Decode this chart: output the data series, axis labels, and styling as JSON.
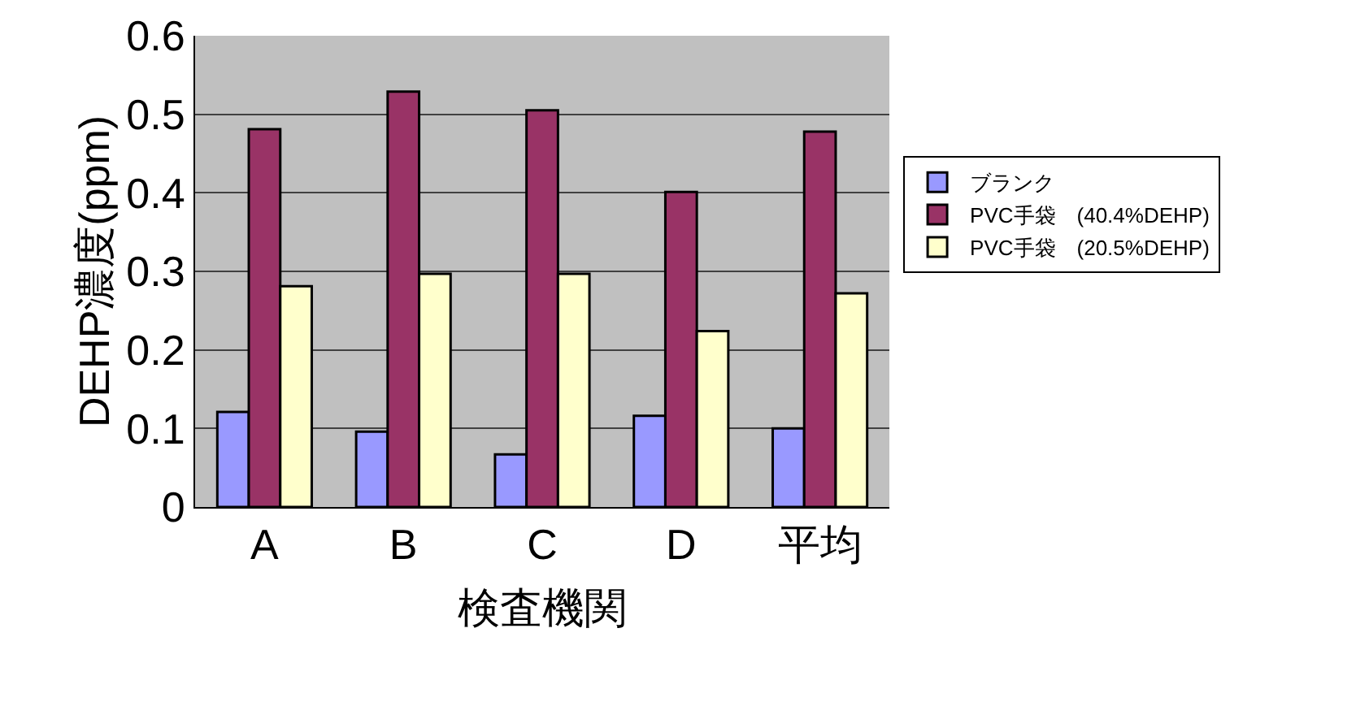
{
  "chart_data": {
    "type": "bar",
    "xlabel": "検査機関",
    "ylabel": "DEHP濃度(ppm)",
    "categories": [
      "A",
      "B",
      "C",
      "D",
      "平均"
    ],
    "series": [
      {
        "name": "ブランク",
        "color": "#9999ff",
        "values": [
          0.121,
          0.096,
          0.067,
          0.116,
          0.1
        ]
      },
      {
        "name": "PVC手袋　(40.4%DEHP)",
        "color": "#993366",
        "values": [
          0.481,
          0.529,
          0.505,
          0.401,
          0.478
        ]
      },
      {
        "name": "PVC手袋　(20.5%DEHP)",
        "color": "#ffffcc",
        "values": [
          0.281,
          0.297,
          0.297,
          0.224,
          0.272
        ]
      }
    ],
    "ylim": [
      0,
      0.6
    ],
    "yticks": [
      0,
      0.1,
      0.2,
      0.3,
      0.4,
      0.5,
      0.6
    ],
    "grid": "y",
    "legend": "right"
  }
}
